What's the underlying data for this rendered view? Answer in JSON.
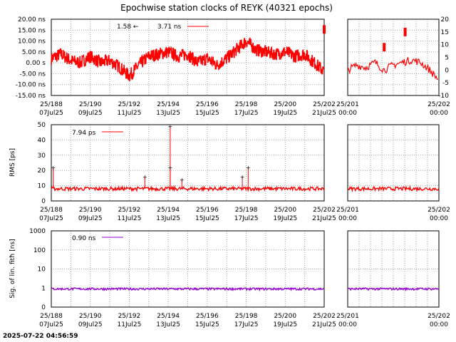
{
  "title": "Epochwise station clocks of REYK (40321 epochs)",
  "timestamp": "2025-07-22 04:56:59",
  "colors": {
    "clock": "#ff0000",
    "rms": "#ff0000",
    "sig": "#9400d3",
    "grid": "#a0a0a0"
  },
  "chart_data": [
    {
      "type": "scatter",
      "name": "clock",
      "ylabel": "",
      "ylim": [
        -15,
        20
      ],
      "yticks": [
        "20.00 ns",
        "15.00 ns",
        "10.00 ns",
        "5.00 ns",
        "0.00 s",
        "-5.00 ns",
        "-10.00 ns",
        "-15.00 ns"
      ],
      "ytick_values": [
        20,
        15,
        10,
        5,
        0,
        -5,
        -10,
        -15
      ],
      "right_ylim": [
        -10,
        20
      ],
      "right_yticks": [
        "20",
        "15",
        "10",
        "5",
        "0",
        "-5",
        "-10"
      ],
      "right_ytick_values": [
        20,
        15,
        10,
        5,
        0,
        -5,
        -10
      ],
      "legend": {
        "text1": "1.58 ←",
        "text2": "3.71 ns"
      },
      "x": [
        188,
        188.5,
        189,
        189.5,
        190,
        190.5,
        191,
        191.5,
        192,
        192.5,
        193,
        193.5,
        194,
        194.5,
        195,
        195.5,
        196,
        196.5,
        197,
        197.5,
        198,
        198.5,
        199,
        199.5,
        200,
        200.5,
        201,
        201.5,
        202
      ],
      "y": [
        2,
        4,
        1,
        0,
        3,
        0,
        1,
        -2,
        -6,
        -1,
        3,
        4,
        5,
        3,
        4,
        0,
        2,
        -1,
        2,
        6,
        10,
        6,
        5,
        4,
        5,
        3,
        4,
        0,
        -4
      ],
      "zoom_x": [
        201,
        201.1,
        201.2,
        201.3,
        201.4,
        201.5,
        201.6,
        201.7,
        201.8,
        201.9,
        202
      ],
      "zoom_y": [
        0,
        2,
        1,
        3,
        0,
        2,
        3,
        4,
        3,
        0,
        -4
      ],
      "spikes": [
        {
          "x": 201.4,
          "y": 9
        },
        {
          "x": 201.63,
          "y": 15
        },
        {
          "x": 202,
          "y": 16
        }
      ]
    },
    {
      "type": "scatter",
      "name": "rms",
      "ylabel": "RMS [ps]",
      "ylim": [
        0,
        50
      ],
      "yticks": [
        "50",
        "40",
        "30",
        "20",
        "10",
        "0"
      ],
      "ytick_values": [
        50,
        40,
        30,
        20,
        10,
        0
      ],
      "legend": {
        "text1": "7.94 ps"
      },
      "baseline": 8,
      "spikes": [
        {
          "x": 188.1,
          "y": 22
        },
        {
          "x": 192.8,
          "y": 16
        },
        {
          "x": 194.1,
          "y": 49
        },
        {
          "x": 194.1,
          "y": 22
        },
        {
          "x": 194.7,
          "y": 14
        },
        {
          "x": 198.1,
          "y": 22
        },
        {
          "x": 197.8,
          "y": 16
        }
      ]
    },
    {
      "type": "scatter",
      "name": "sig",
      "ylabel": "Sig. of lin. fitħ [ns]",
      "ylim": [
        0,
        1000
      ],
      "yscale": "log",
      "yticks": [
        "1000",
        "100",
        "10",
        "1",
        "0"
      ],
      "legend": {
        "text1": "0.90 ns"
      },
      "baseline": 0.9
    }
  ],
  "xaxis": {
    "main_ticks_top": [
      "25/188",
      "25/190",
      "25/192",
      "25/194",
      "25/196",
      "25/198",
      "25/200",
      "25/202"
    ],
    "main_ticks_bottom": [
      "07Jul25",
      "09Jul25",
      "11Jul25",
      "13Jul25",
      "15Jul25",
      "17Jul25",
      "19Jul25",
      "21Jul25"
    ],
    "zoom_ticks_top": [
      "25/201",
      "25/202"
    ],
    "zoom_ticks_bottom": [
      "00:00",
      "00:00"
    ]
  }
}
